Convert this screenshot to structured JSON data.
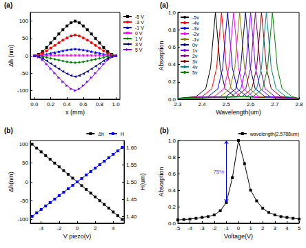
{
  "chart_data": [
    {
      "type": "line",
      "title": "(a)",
      "x_label": "x (mm)",
      "y_label": "Δh (nm)",
      "xlim": [
        -0.05,
        1.05
      ],
      "xticks": [
        {
          "value": 0,
          "label": "0.0"
        },
        0.2,
        0.4,
        0.6,
        0.8,
        {
          "value": 1,
          "label": "1.0"
        }
      ],
      "ylim": [
        -125,
        125
      ],
      "yticks": [
        -100,
        -50,
        0,
        50,
        100
      ],
      "grid": false,
      "legend": "right",
      "x": [
        0,
        0.05,
        0.1,
        0.15,
        0.2,
        0.25,
        0.3,
        0.35,
        0.4,
        0.45,
        0.5,
        0.55,
        0.6,
        0.65,
        0.7,
        0.75,
        0.8,
        0.85,
        0.9,
        0.95,
        1
      ],
      "series": [
        {
          "name": "-5 V",
          "color": "#000000",
          "marker": "square",
          "values": [
            0,
            4,
            12,
            24,
            37,
            50,
            63,
            75,
            86,
            95,
            100,
            95,
            86,
            75,
            63,
            50,
            37,
            24,
            12,
            4,
            0
          ]
        },
        {
          "name": "-3 V",
          "color": "#ff0000",
          "marker": "circle",
          "values": [
            0,
            2.4,
            7.2,
            14.4,
            22.2,
            30,
            37.8,
            45,
            51.6,
            57,
            60,
            57,
            51.6,
            45,
            37.8,
            30,
            22.2,
            14.4,
            7.2,
            2.4,
            0
          ]
        },
        {
          "name": "-1 V",
          "color": "#0000ff",
          "marker": "triangle",
          "values": [
            0,
            0.8,
            2.4,
            4.8,
            7.4,
            10,
            12.6,
            15,
            17.2,
            19,
            20,
            19,
            17.2,
            15,
            12.6,
            10,
            7.4,
            4.8,
            2.4,
            0.8,
            0
          ]
        },
        {
          "name": "0 V",
          "color": "#ff00ff",
          "marker": "down-triangle",
          "values": [
            0,
            0,
            0,
            0,
            0,
            0,
            0,
            0,
            0,
            0,
            0,
            0,
            0,
            0,
            0,
            0,
            0,
            0,
            0,
            0,
            0
          ]
        },
        {
          "name": "1 V",
          "color": "#008000",
          "marker": "diamond",
          "values": [
            0,
            -0.8,
            -2.4,
            -4.8,
            -7.4,
            -10,
            -12.6,
            -15,
            -17.2,
            -19,
            -20,
            -19,
            -17.2,
            -15,
            -12.6,
            -10,
            -7.4,
            -4.8,
            -2.4,
            -0.8,
            0
          ]
        },
        {
          "name": "3 V",
          "color": "#000080",
          "marker": "left-triangle",
          "values": [
            0,
            -2.4,
            -7.2,
            -14.4,
            -22.2,
            -30,
            -37.8,
            -45,
            -51.6,
            -57,
            -60,
            -57,
            -51.6,
            -45,
            -37.8,
            -30,
            -22.2,
            -14.4,
            -7.2,
            -2.4,
            0
          ]
        },
        {
          "name": "5 V",
          "color": "#8000ff",
          "marker": "right-triangle",
          "values": [
            0,
            -4,
            -12,
            -24,
            -37,
            -50,
            -63,
            -75,
            -86,
            -95,
            -100,
            -95,
            -86,
            -75,
            -63,
            -50,
            -37,
            -24,
            -12,
            -4,
            0
          ]
        }
      ]
    },
    {
      "type": "line",
      "title": "(a)",
      "x_label": "Wavelength(um)",
      "y_label": "Absorption",
      "xlim": [
        2.3,
        2.8
      ],
      "xticks": [
        2.3,
        2.4,
        2.5,
        2.6,
        2.7,
        2.8
      ],
      "ylim": [
        0,
        1
      ],
      "yticks": [
        {
          "value": 0,
          "label": "0.0"
        },
        0.2,
        0.4,
        0.6,
        0.8,
        {
          "value": 1,
          "label": "1.0"
        }
      ],
      "grid": false,
      "legend": "upper left",
      "series": [
        {
          "name": "-5v",
          "color": "#000000",
          "x": [
            2.3,
            2.375,
            2.415,
            2.435,
            2.445,
            2.455,
            2.465,
            2.475,
            2.495,
            2.535,
            2.8
          ],
          "values": [
            0.01,
            0.03,
            0.12,
            0.36,
            0.69,
            1.0,
            0.69,
            0.36,
            0.12,
            0.03,
            0.01
          ]
        },
        {
          "name": "-4v",
          "color": "#ff0000",
          "x": [
            2.3,
            2.4,
            2.44,
            2.46,
            2.47,
            2.48,
            2.49,
            2.5,
            2.52,
            2.56,
            2.8
          ],
          "values": [
            0.01,
            0.03,
            0.12,
            0.36,
            0.69,
            1.0,
            0.69,
            0.36,
            0.12,
            0.03,
            0.01
          ]
        },
        {
          "name": "-3v",
          "color": "#0000ff",
          "x": [
            2.3,
            2.425,
            2.465,
            2.485,
            2.495,
            2.505,
            2.515,
            2.525,
            2.545,
            2.585,
            2.8
          ],
          "values": [
            0.01,
            0.03,
            0.12,
            0.36,
            0.69,
            1.0,
            0.69,
            0.36,
            0.12,
            0.03,
            0.01
          ]
        },
        {
          "name": "-2v",
          "color": "#ff00ff",
          "x": [
            2.3,
            2.45,
            2.49,
            2.51,
            2.52,
            2.53,
            2.54,
            2.55,
            2.57,
            2.61,
            2.8
          ],
          "values": [
            0.01,
            0.03,
            0.12,
            0.36,
            0.69,
            1.0,
            0.69,
            0.36,
            0.12,
            0.03,
            0.01
          ]
        },
        {
          "name": "-1v",
          "color": "#808000",
          "x": [
            2.3,
            2.475,
            2.515,
            2.535,
            2.545,
            2.555,
            2.565,
            2.575,
            2.595,
            2.635,
            2.8
          ],
          "values": [
            0.01,
            0.03,
            0.12,
            0.36,
            0.69,
            1.0,
            0.69,
            0.36,
            0.12,
            0.03,
            0.01
          ]
        },
        {
          "name": "0v",
          "color": "#000080",
          "x": [
            2.3,
            2.499,
            2.539,
            2.559,
            2.569,
            2.579,
            2.589,
            2.599,
            2.619,
            2.659,
            2.8
          ],
          "values": [
            0.01,
            0.03,
            0.12,
            0.36,
            0.69,
            1.0,
            0.69,
            0.36,
            0.12,
            0.03,
            0.01
          ]
        },
        {
          "name": "1v",
          "color": "#8000ff",
          "x": [
            2.3,
            2.52,
            2.56,
            2.58,
            2.59,
            2.6,
            2.61,
            2.62,
            2.64,
            2.68,
            2.8
          ],
          "values": [
            0.01,
            0.03,
            0.12,
            0.36,
            0.69,
            1.0,
            0.69,
            0.36,
            0.12,
            0.03,
            0.01
          ]
        },
        {
          "name": "2v",
          "color": "#800080",
          "x": [
            2.3,
            2.54,
            2.58,
            2.6,
            2.61,
            2.62,
            2.63,
            2.64,
            2.66,
            2.7,
            2.8
          ],
          "values": [
            0.01,
            0.03,
            0.12,
            0.36,
            0.69,
            1.0,
            0.69,
            0.36,
            0.12,
            0.03,
            0.01
          ]
        },
        {
          "name": "3v",
          "color": "#800000",
          "x": [
            2.3,
            2.565,
            2.605,
            2.625,
            2.635,
            2.645,
            2.655,
            2.665,
            2.685,
            2.725,
            2.8
          ],
          "values": [
            0.01,
            0.03,
            0.12,
            0.36,
            0.69,
            1.0,
            0.69,
            0.36,
            0.12,
            0.03,
            0.01
          ]
        },
        {
          "name": "4v",
          "color": "#008080",
          "x": [
            2.3,
            2.585,
            2.625,
            2.645,
            2.655,
            2.665,
            2.675,
            2.685,
            2.705,
            2.745,
            2.8
          ],
          "values": [
            0.01,
            0.03,
            0.12,
            0.36,
            0.69,
            1.0,
            0.69,
            0.36,
            0.12,
            0.03,
            0.01
          ]
        },
        {
          "name": "5v",
          "color": "#008000",
          "x": [
            2.3,
            2.61,
            2.65,
            2.67,
            2.68,
            2.69,
            2.7,
            2.71,
            2.73,
            2.77,
            2.8
          ],
          "values": [
            0.01,
            0.03,
            0.12,
            0.36,
            0.69,
            1.0,
            0.69,
            0.36,
            0.12,
            0.03,
            0.01
          ]
        }
      ]
    },
    {
      "type": "line",
      "title": "(b)",
      "x_label": "V piezo(v)",
      "y_label": "Δh(nm)",
      "y2_label": "H(um)",
      "xlim": [
        -5.2,
        5.2
      ],
      "xticks": [
        -4,
        -2,
        0,
        2,
        4
      ],
      "ylim": [
        -110,
        110
      ],
      "yticks": [
        -100,
        -50,
        0,
        50,
        100
      ],
      "y2lim": [
        1.38,
        1.62
      ],
      "y2ticks": [
        {
          "value": 1.4,
          "label": "1.40"
        },
        1.45,
        {
          "value": 1.5,
          "label": "1.50"
        },
        1.55,
        {
          "value": 1.6,
          "label": "1.60"
        }
      ],
      "grid": false,
      "legend": "top",
      "x": [
        -5,
        -4.5,
        -4,
        -3.5,
        -3,
        -2.5,
        -2,
        -1.5,
        -1,
        -0.5,
        0,
        0.5,
        1,
        1.5,
        2,
        2.5,
        3,
        3.5,
        4,
        4.5,
        5
      ],
      "series": [
        {
          "name": "Δh",
          "color": "#000000",
          "marker": "square",
          "values": [
            100,
            90,
            80,
            70,
            60,
            50,
            40,
            30,
            20,
            10,
            0,
            -10,
            -20,
            -30,
            -40,
            -50,
            -60,
            -70,
            -80,
            -90,
            -100
          ]
        },
        {
          "name": "H",
          "color": "#0000ff",
          "marker": "square",
          "axis": "y2",
          "values": [
            1.4,
            1.41,
            1.42,
            1.43,
            1.44,
            1.45,
            1.46,
            1.47,
            1.48,
            1.49,
            1.5,
            1.51,
            1.52,
            1.53,
            1.54,
            1.55,
            1.56,
            1.57,
            1.58,
            1.59,
            1.6
          ]
        }
      ]
    },
    {
      "type": "line",
      "title": "(b)",
      "x_label": "Voltage(V)",
      "y_label": "Absorption",
      "xlim": [
        -5,
        5
      ],
      "xticks": [
        -5,
        -4,
        -3,
        -2,
        -1,
        0,
        1,
        2,
        3,
        4,
        5
      ],
      "ylim": [
        0,
        1
      ],
      "yticks": [
        {
          "value": 0,
          "label": "0.0"
        },
        0.2,
        0.4,
        0.6,
        0.8,
        {
          "value": 1,
          "label": "1.0"
        }
      ],
      "grid": false,
      "legend": "top",
      "x": [
        -5,
        -4.5,
        -4,
        -3.5,
        -3,
        -2.5,
        -2,
        -1.5,
        -1,
        -0.5,
        0,
        0.5,
        1,
        1.5,
        2,
        2.5,
        3,
        3.5,
        4,
        4.5,
        5
      ],
      "series": [
        {
          "name": "wavelength(2.5788um)",
          "color": "#000000",
          "marker": "square",
          "values": [
            0.04,
            0.045,
            0.05,
            0.06,
            0.07,
            0.08,
            0.1,
            0.15,
            0.25,
            0.55,
            1.0,
            0.72,
            0.4,
            0.27,
            0.18,
            0.13,
            0.1,
            0.08,
            0.07,
            0.06,
            0.05
          ]
        }
      ],
      "annotations": [
        {
          "text": "75%",
          "x": -1,
          "y_from": 0.25,
          "y_to": 1.0,
          "color": "#0000ff"
        }
      ]
    }
  ]
}
